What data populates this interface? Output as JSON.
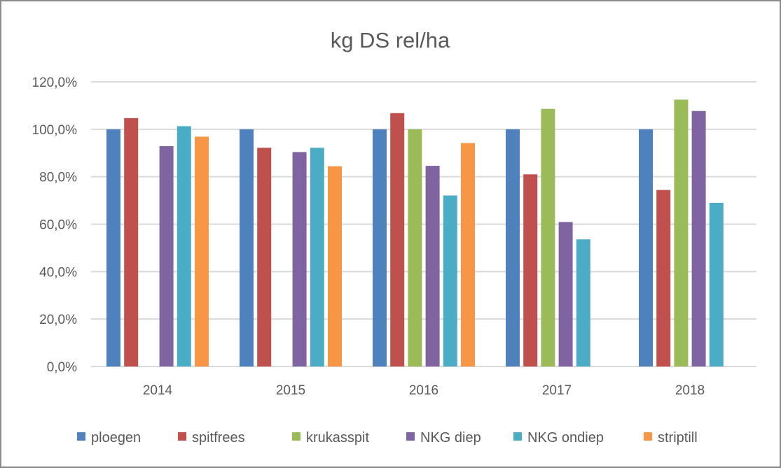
{
  "chart_data": {
    "type": "bar",
    "title": "kg DS rel/ha",
    "xlabel": "",
    "ylabel": "",
    "categories": [
      "2014",
      "2015",
      "2016",
      "2017",
      "2018"
    ],
    "ylim": [
      0,
      120
    ],
    "yticks": [
      "0,0%",
      "20,0%",
      "40,0%",
      "60,0%",
      "80,0%",
      "100,0%",
      "120,0%"
    ],
    "grid": true,
    "legend_position": "bottom",
    "series": [
      {
        "name": "ploegen",
        "color": "#4f81bd",
        "values": [
          100,
          100,
          100,
          100,
          100
        ]
      },
      {
        "name": "spitfrees",
        "color": "#c0504d",
        "values": [
          104.7,
          92.2,
          106.8,
          81.0,
          74.4
        ]
      },
      {
        "name": "krukasspit",
        "color": "#9bbb59",
        "values": [
          null,
          null,
          100,
          108.6,
          112.5
        ]
      },
      {
        "name": "NKG diep",
        "color": "#8064a2",
        "values": [
          92.9,
          90.4,
          84.6,
          60.9,
          107.7
        ]
      },
      {
        "name": "NKG ondiep",
        "color": "#4bacc6",
        "values": [
          101.3,
          92.2,
          72.1,
          53.6,
          69.0
        ]
      },
      {
        "name": "striptill",
        "color": "#f79646",
        "values": [
          96.9,
          84.4,
          94.2,
          null,
          null
        ]
      }
    ]
  }
}
